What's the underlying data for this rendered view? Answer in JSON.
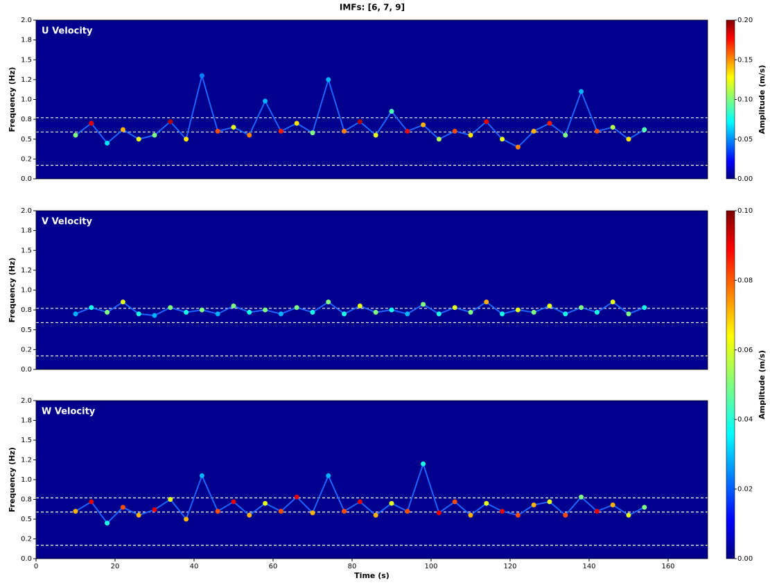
{
  "chart_data": [
    {
      "type": "line",
      "title": "IMFs: [6, 7, 9]",
      "label": "U Velocity",
      "ylabel": "Frequency (Hz)",
      "xlim": [
        0,
        170
      ],
      "ylim": [
        0,
        2
      ],
      "yticks": [
        {
          "value": 0,
          "label": "0.0"
        },
        {
          "value": 0.25,
          "label": "0.2"
        },
        {
          "value": 0.5,
          "label": "0.5"
        },
        {
          "value": 0.75,
          "label": "0.8"
        },
        {
          "value": 1,
          "label": "1.0"
        },
        {
          "value": 1.25,
          "label": "1.2"
        },
        {
          "value": 1.5,
          "label": "1.5"
        },
        {
          "value": 1.75,
          "label": "1.8"
        },
        {
          "value": 2,
          "label": "2.0"
        }
      ],
      "hlines": [
        0.17,
        0.59,
        0.77
      ],
      "x": [
        10,
        14,
        18,
        22,
        26,
        30,
        34,
        38,
        42,
        46,
        50,
        54,
        58,
        62,
        66,
        70,
        74,
        78,
        82,
        86,
        90,
        94,
        98,
        102,
        106,
        110,
        114,
        118,
        122,
        126,
        130,
        134,
        138,
        142,
        146,
        150,
        154
      ],
      "series": [
        {
          "values": [
            0.55,
            0.7,
            0.45,
            0.62,
            0.5,
            0.55,
            0.72,
            0.5,
            1.3,
            0.6,
            0.65,
            0.55,
            0.98,
            0.6,
            0.7,
            0.58,
            1.25,
            0.6,
            0.72,
            0.55,
            0.85,
            0.6,
            0.68,
            0.5,
            0.6,
            0.55,
            0.72,
            0.5,
            0.4,
            0.6,
            0.7,
            0.55,
            1.1,
            0.6,
            0.65,
            0.5,
            0.62
          ],
          "amplitudes": [
            0.1,
            0.18,
            0.07,
            0.14,
            0.12,
            0.1,
            0.19,
            0.13,
            0.05,
            0.16,
            0.12,
            0.15,
            0.06,
            0.17,
            0.13,
            0.1,
            0.06,
            0.15,
            0.19,
            0.12,
            0.09,
            0.18,
            0.14,
            0.11,
            0.16,
            0.13,
            0.18,
            0.12,
            0.15,
            0.14,
            0.17,
            0.1,
            0.06,
            0.16,
            0.11,
            0.13,
            0.09
          ]
        }
      ],
      "colorbar": {
        "label": "Amplitude (m/s)",
        "lim": [
          0,
          0.2
        ],
        "ticks": [
          {
            "value": 0,
            "label": "0.00"
          },
          {
            "value": 0.05,
            "label": "0.05"
          },
          {
            "value": 0.1,
            "label": "0.10"
          },
          {
            "value": 0.15,
            "label": "0.15"
          },
          {
            "value": 0.2,
            "label": "0.20"
          }
        ]
      }
    },
    {
      "type": "line",
      "label": "V Velocity",
      "ylabel": "Frequency (Hz)",
      "xlim": [
        0,
        170
      ],
      "ylim": [
        0,
        2
      ],
      "yticks": [
        {
          "value": 0,
          "label": "0.0"
        },
        {
          "value": 0.25,
          "label": "0.2"
        },
        {
          "value": 0.5,
          "label": "0.5"
        },
        {
          "value": 0.75,
          "label": "0.8"
        },
        {
          "value": 1,
          "label": "1.0"
        },
        {
          "value": 1.25,
          "label": "1.2"
        },
        {
          "value": 1.5,
          "label": "1.5"
        },
        {
          "value": 1.75,
          "label": "1.8"
        },
        {
          "value": 2,
          "label": "2.0"
        }
      ],
      "hlines": [
        0.17,
        0.59,
        0.77
      ],
      "x": [
        10,
        14,
        18,
        22,
        26,
        30,
        34,
        38,
        42,
        46,
        50,
        54,
        58,
        62,
        66,
        70,
        74,
        78,
        82,
        86,
        90,
        94,
        98,
        102,
        106,
        110,
        114,
        118,
        122,
        126,
        130,
        134,
        138,
        142,
        146,
        150,
        154
      ],
      "series": [
        {
          "values": [
            0.7,
            0.78,
            0.72,
            0.85,
            0.7,
            0.68,
            0.78,
            0.72,
            0.75,
            0.7,
            0.8,
            0.72,
            0.75,
            0.7,
            0.78,
            0.72,
            0.85,
            0.7,
            0.8,
            0.72,
            0.75,
            0.7,
            0.82,
            0.7,
            0.78,
            0.72,
            0.85,
            0.7,
            0.75,
            0.72,
            0.8,
            0.7,
            0.78,
            0.72,
            0.85,
            0.7,
            0.78
          ],
          "amplitudes": [
            0.03,
            0.04,
            0.05,
            0.06,
            0.04,
            0.03,
            0.05,
            0.04,
            0.05,
            0.03,
            0.05,
            0.04,
            0.05,
            0.03,
            0.05,
            0.04,
            0.05,
            0.04,
            0.06,
            0.05,
            0.04,
            0.03,
            0.05,
            0.04,
            0.06,
            0.05,
            0.07,
            0.04,
            0.06,
            0.05,
            0.06,
            0.04,
            0.05,
            0.04,
            0.06,
            0.05,
            0.04
          ]
        }
      ],
      "colorbar": {
        "label": "Amplitude (m/s)",
        "lim": [
          0,
          0.1
        ],
        "ticks": [
          {
            "value": 0,
            "label": "0.00"
          },
          {
            "value": 0.02,
            "label": "0.02"
          },
          {
            "value": 0.04,
            "label": "0.04"
          },
          {
            "value": 0.06,
            "label": "0.06"
          },
          {
            "value": 0.08,
            "label": "0.08"
          },
          {
            "value": 0.1,
            "label": "0.10"
          }
        ]
      }
    },
    {
      "type": "line",
      "label": "W Velocity",
      "ylabel": "Frequency (Hz)",
      "xlabel": "Time (s)",
      "xlim": [
        0,
        170
      ],
      "ylim": [
        0,
        2
      ],
      "xticks": [
        0,
        20,
        40,
        60,
        80,
        100,
        120,
        140,
        160
      ],
      "yticks": [
        {
          "value": 0,
          "label": "0.0"
        },
        {
          "value": 0.25,
          "label": "0.2"
        },
        {
          "value": 0.5,
          "label": "0.5"
        },
        {
          "value": 0.75,
          "label": "0.8"
        },
        {
          "value": 1,
          "label": "1.0"
        },
        {
          "value": 1.25,
          "label": "1.2"
        },
        {
          "value": 1.5,
          "label": "1.5"
        },
        {
          "value": 1.75,
          "label": "1.8"
        },
        {
          "value": 2,
          "label": "2.0"
        }
      ],
      "hlines": [
        0.17,
        0.59,
        0.77
      ],
      "x": [
        10,
        14,
        18,
        22,
        26,
        30,
        34,
        38,
        42,
        46,
        50,
        54,
        58,
        62,
        66,
        70,
        74,
        78,
        82,
        86,
        90,
        94,
        98,
        102,
        106,
        110,
        114,
        118,
        122,
        126,
        130,
        134,
        138,
        142,
        146,
        150,
        154
      ],
      "series": [
        {
          "values": [
            0.6,
            0.72,
            0.45,
            0.65,
            0.55,
            0.62,
            0.75,
            0.5,
            1.05,
            0.6,
            0.72,
            0.55,
            0.7,
            0.6,
            0.78,
            0.58,
            1.05,
            0.6,
            0.72,
            0.55,
            0.7,
            0.6,
            1.2,
            0.58,
            0.72,
            0.55,
            0.7,
            0.6,
            0.55,
            0.68,
            0.72,
            0.55,
            0.78,
            0.6,
            0.68,
            0.55,
            0.65
          ],
          "amplitudes": [
            0.07,
            0.09,
            0.04,
            0.08,
            0.07,
            0.09,
            0.06,
            0.07,
            0.03,
            0.08,
            0.09,
            0.07,
            0.06,
            0.08,
            0.09,
            0.07,
            0.03,
            0.08,
            0.09,
            0.07,
            0.06,
            0.08,
            0.04,
            0.09,
            0.08,
            0.07,
            0.06,
            0.09,
            0.08,
            0.07,
            0.06,
            0.08,
            0.05,
            0.09,
            0.07,
            0.06,
            0.05
          ]
        }
      ]
    }
  ]
}
